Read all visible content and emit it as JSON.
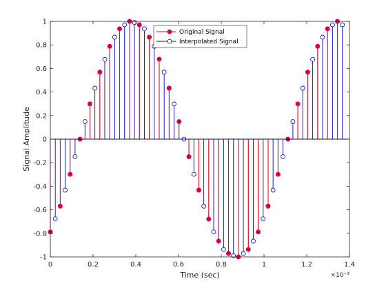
{
  "chart_data": {
    "type": "stem",
    "xlabel": "Time (sec)",
    "ylabel": "Signal Amplitude",
    "x_exponent": "×10⁻³",
    "xlim": [
      0,
      1.4
    ],
    "ylim": [
      -1,
      1
    ],
    "x_ticks": [
      "0",
      "0.2",
      "0.4",
      "0.6",
      "0.8",
      "1",
      "1.2",
      "1.4"
    ],
    "y_ticks": [
      "-1",
      "-0.8",
      "-0.6",
      "-0.4",
      "-0.2",
      "0",
      "0.2",
      "0.4",
      "0.6",
      "0.8",
      "1"
    ],
    "grid": false,
    "legend_position": "top-right",
    "series": [
      {
        "name": "Original Signal",
        "color": "#ff0000",
        "marker_fill": "#cc0066",
        "x": [
          0.0,
          0.0463,
          0.0927,
          0.139,
          0.1853,
          0.2317,
          0.278,
          0.3243,
          0.3707,
          0.417,
          0.4633,
          0.5097,
          0.556,
          0.6023,
          0.6487,
          0.695,
          0.7413,
          0.7877,
          0.834,
          0.8803,
          0.9267,
          0.973,
          1.0193,
          1.0657,
          1.112,
          1.1583,
          1.2047,
          1.251,
          1.2973,
          1.3437
        ],
        "y": [
          -0.788,
          -0.569,
          -0.299,
          0.0,
          0.299,
          0.569,
          0.788,
          0.937,
          1.0,
          0.971,
          0.866,
          0.679,
          0.433,
          0.149,
          -0.149,
          -0.433,
          -0.679,
          -0.866,
          -0.971,
          -1.0,
          -0.937,
          -0.788,
          -0.569,
          -0.299,
          0.0,
          0.299,
          0.569,
          0.788,
          0.937,
          1.0
        ]
      },
      {
        "name": "Interpolated Signal",
        "color": "#0000cc",
        "marker_fill": "#ffffff",
        "x": [
          0.0,
          0.0232,
          0.0463,
          0.0695,
          0.0927,
          0.1158,
          0.139,
          0.1622,
          0.1853,
          0.2085,
          0.2317,
          0.2548,
          0.278,
          0.3012,
          0.3243,
          0.3475,
          0.3707,
          0.3938,
          0.417,
          0.4402,
          0.4633,
          0.4865,
          0.5097,
          0.5328,
          0.556,
          0.5792,
          0.6023,
          0.6255,
          0.6487,
          0.6718,
          0.695,
          0.7182,
          0.7413,
          0.7645,
          0.7877,
          0.8108,
          0.834,
          0.8572,
          0.8803,
          0.9035,
          0.9267,
          0.9498,
          0.973,
          0.9962,
          1.0193,
          1.0425,
          1.0657,
          1.0888,
          1.112,
          1.1352,
          1.1583,
          1.1815,
          1.2047,
          1.2278,
          1.251,
          1.2742,
          1.2973,
          1.3205,
          1.3437,
          1.3668
        ],
        "y": [
          -0.788,
          -0.677,
          -0.569,
          -0.433,
          -0.299,
          -0.149,
          0.0,
          0.149,
          0.299,
          0.433,
          0.569,
          0.677,
          0.788,
          0.866,
          0.937,
          0.971,
          1.0,
          0.99,
          0.971,
          0.937,
          0.866,
          0.788,
          0.679,
          0.569,
          0.433,
          0.299,
          0.149,
          0.0,
          -0.149,
          -0.299,
          -0.433,
          -0.569,
          -0.679,
          -0.788,
          -0.866,
          -0.937,
          -0.971,
          -0.99,
          -1.0,
          -0.971,
          -0.937,
          -0.866,
          -0.788,
          -0.677,
          -0.569,
          -0.433,
          -0.299,
          -0.149,
          0.0,
          0.149,
          0.299,
          0.433,
          0.569,
          0.677,
          0.788,
          0.866,
          0.937,
          0.971,
          1.0,
          0.971
        ]
      }
    ]
  }
}
